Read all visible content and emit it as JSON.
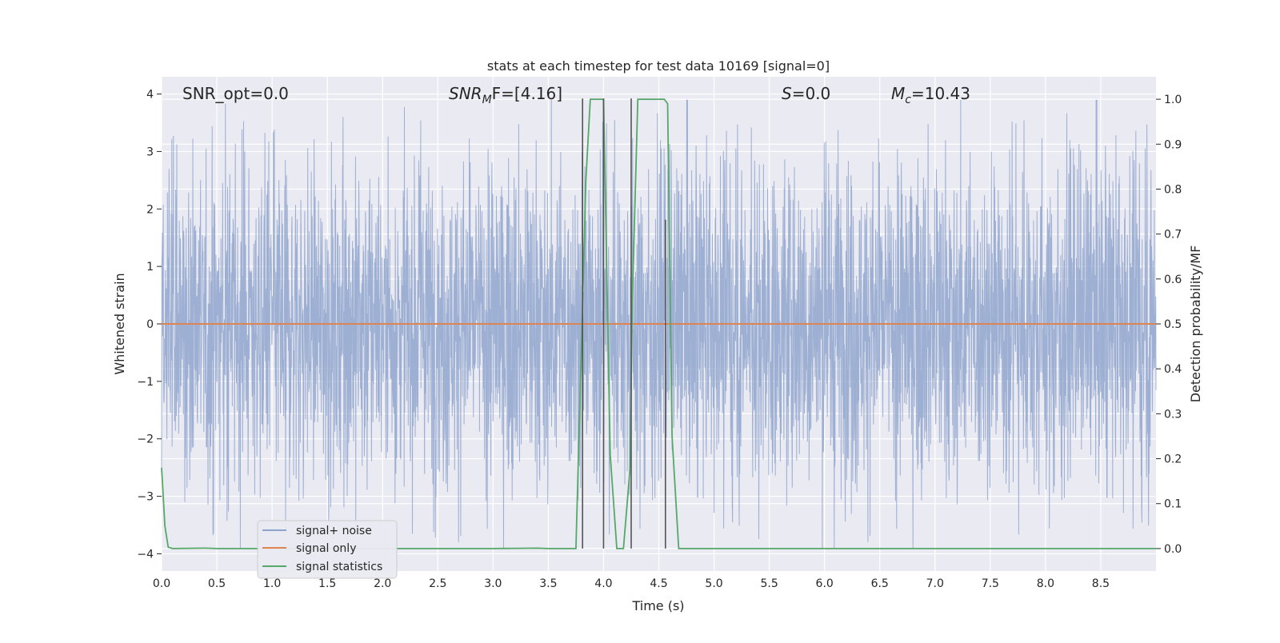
{
  "chart_data": {
    "type": "line",
    "title": "stats at each timestep for test data 10169 [signal=0]",
    "xlabel": "Time (s)",
    "ylabel": "Whitened strain",
    "y2label": "Detection probability/MF",
    "xlim": [
      0.0,
      9.0
    ],
    "ylim": [
      -4.3,
      4.3
    ],
    "y2lim": [
      -0.05,
      1.05
    ],
    "xticks": [
      "0.0",
      "0.5",
      "1.0",
      "1.5",
      "2.0",
      "2.5",
      "3.0",
      "3.5",
      "4.0",
      "4.5",
      "5.0",
      "5.5",
      "6.0",
      "6.5",
      "7.0",
      "7.5",
      "8.0",
      "8.5"
    ],
    "yticks": [
      "4",
      "3",
      "2",
      "1",
      "0",
      "−1",
      "−2",
      "−3",
      "−4"
    ],
    "y2ticks": [
      "1.0",
      "0.9",
      "0.8",
      "0.7",
      "0.6",
      "0.5",
      "0.4",
      "0.3",
      "0.2",
      "0.1",
      "0.0"
    ],
    "grid": true,
    "legend_position": "lower-left",
    "annotations": {
      "snr_opt": "SNR_opt=0.0",
      "snr_mf_main": "SNR",
      "snr_mf_sub": "M",
      "snr_mf_rest": "F=[4.16]",
      "s_main": "S",
      "s_rest": "=0.0",
      "mc_main": "M",
      "mc_sub": "c",
      "mc_rest": "=10.43"
    },
    "series": [
      {
        "name": "signal+ noise",
        "color": "#8fa4cc",
        "description_axis": "left",
        "noise_band_typical": 1.55,
        "noise_band_peak": 3.9
      },
      {
        "name": "signal only",
        "color": "#dd8452",
        "axis": "left",
        "x": [
          0.0,
          9.0
        ],
        "y": [
          0.0,
          0.0
        ]
      },
      {
        "name": "signal statistics",
        "color": "#55a868",
        "axis": "right",
        "x": [
          0.0,
          0.03,
          0.06,
          0.1,
          0.4,
          0.5,
          1.0,
          2.0,
          3.0,
          3.4,
          3.5,
          3.75,
          3.8,
          3.84,
          3.88,
          3.98,
          4.0,
          4.06,
          4.12,
          4.18,
          4.24,
          4.26,
          4.31,
          4.55,
          4.58,
          4.62,
          4.68,
          5.0,
          6.0,
          7.0,
          8.0,
          9.0
        ],
        "y": [
          0.18,
          0.05,
          0.003,
          0.0,
          0.001,
          0.0,
          0.0,
          0.0,
          0.0,
          0.001,
          0.0,
          0.0,
          0.45,
          0.82,
          1.0,
          1.0,
          1.0,
          0.21,
          0.0,
          0.0,
          0.18,
          0.55,
          1.0,
          1.0,
          0.99,
          0.25,
          0.0,
          0.0,
          0.0,
          0.0,
          0.0,
          0.0
        ]
      }
    ],
    "vertical_markers": [
      {
        "x": 3.81,
        "y2_top": 1.0
      },
      {
        "x": 4.0,
        "y2_top": 1.0
      },
      {
        "x": 4.25,
        "y2_top": 1.0
      },
      {
        "x": 4.56,
        "y2_top": 0.73
      }
    ]
  }
}
